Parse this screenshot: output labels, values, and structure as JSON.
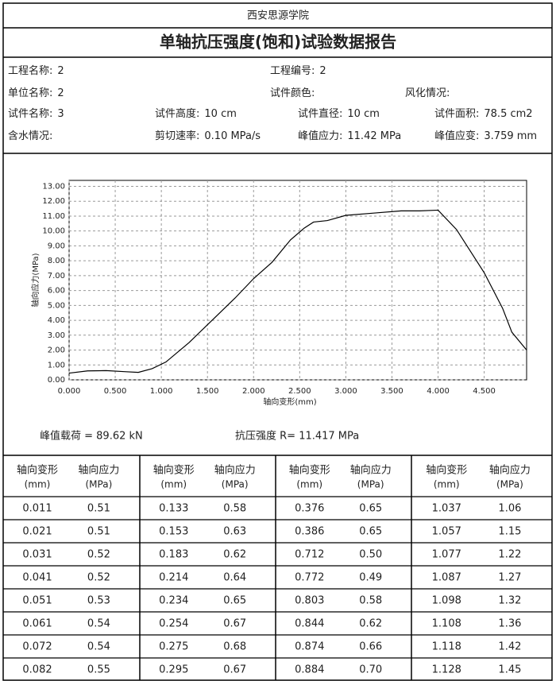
{
  "header": {
    "institution": "西安思源学院",
    "title": "单轴抗压强度(饱和)试验数据报告"
  },
  "info": [
    [
      {
        "label": "工程名称:",
        "value": "2",
        "x": 0
      },
      {
        "label": "工程编号:",
        "value": "2",
        "x": 1
      }
    ],
    [
      {
        "label": "单位名称:",
        "value": "2",
        "x": 0
      },
      {
        "label": "试件颜色:",
        "x": 1
      },
      {
        "label": "风化情况:",
        "x": 2
      }
    ],
    [
      {
        "label": "试件名称:",
        "value": "3"
      },
      {
        "label": "试件高度:",
        "value": "10 cm"
      },
      {
        "label": "试件直径:",
        "value": "10 cm"
      },
      {
        "label": "试件面积:",
        "value": "78.5 cm2"
      }
    ],
    [
      {
        "label": "含水情况:"
      },
      {
        "label": "剪切速率:",
        "value": "0.10 MPa/s"
      },
      {
        "label": "峰值应力:",
        "value": "11.42 MPa"
      },
      {
        "label": "峰值应变:",
        "value": "3.759 mm"
      }
    ]
  ],
  "chart_data": {
    "type": "line",
    "x_label": "轴向变形(mm)",
    "y_label": "轴向应力(MPa)",
    "color": "#000000",
    "grid": true,
    "x": [
      0,
      0.2,
      0.4,
      0.6,
      0.75,
      0.9,
      1.05,
      1.3,
      1.5,
      1.8,
      2.0,
      2.2,
      2.4,
      2.55,
      2.65,
      2.8,
      3.0,
      3.3,
      3.6,
      3.8,
      4.0,
      4.2,
      4.5,
      4.7,
      4.8,
      4.96
    ],
    "values": [
      0.45,
      0.6,
      0.62,
      0.55,
      0.5,
      0.75,
      1.2,
      2.5,
      3.7,
      5.5,
      6.8,
      7.9,
      9.4,
      10.2,
      10.6,
      10.7,
      11.05,
      11.2,
      11.35,
      11.35,
      11.4,
      10.1,
      7.2,
      4.8,
      3.2,
      2.0
    ],
    "xlim": [
      0,
      4.96
    ],
    "ylim": [
      0,
      13.4
    ],
    "xticks": [
      {
        "value": 0,
        "label": "0.000"
      },
      {
        "value": 0.5,
        "label": "0.500"
      },
      {
        "value": 1,
        "label": "1.000"
      },
      {
        "value": 1.5,
        "label": "1.500"
      },
      {
        "value": 2,
        "label": "2.000"
      },
      {
        "value": 2.5,
        "label": "2.500"
      },
      {
        "value": 3,
        "label": "3.000"
      },
      {
        "value": 3.5,
        "label": "3.500"
      },
      {
        "value": 4,
        "label": "4.000"
      },
      {
        "value": 4.5,
        "label": "4.500"
      }
    ],
    "yticks": [
      {
        "value": 0,
        "label": "0.00"
      },
      {
        "value": 1,
        "label": "1.00"
      },
      {
        "value": 2,
        "label": "2.00"
      },
      {
        "value": 3,
        "label": "3.00"
      },
      {
        "value": 4,
        "label": "4.00"
      },
      {
        "value": 5,
        "label": "5.00"
      },
      {
        "value": 6,
        "label": "6.00"
      },
      {
        "value": 7,
        "label": "7.00"
      },
      {
        "value": 8,
        "label": "8.00"
      },
      {
        "value": 9,
        "label": "9.00"
      },
      {
        "value": 10,
        "label": "10.00"
      },
      {
        "value": 11,
        "label": "11.00"
      },
      {
        "value": 12,
        "label": "12.00"
      },
      {
        "value": 13,
        "label": "13.00"
      }
    ]
  },
  "results": [
    "峰值载荷 = 89.62 kN",
    "抗压强度 R= 11.417 MPa"
  ],
  "table": {
    "header": [
      "轴向变形",
      "轴向应力",
      "(mm)",
      "(MPa)"
    ],
    "rows": [
      [
        "0.011",
        "0.51",
        "0.133",
        "0.58",
        "0.376",
        "0.65",
        "1.037",
        "1.06"
      ],
      [
        "0.021",
        "0.51",
        "0.153",
        "0.63",
        "0.386",
        "0.65",
        "1.057",
        "1.15"
      ],
      [
        "0.031",
        "0.52",
        "0.183",
        "0.62",
        "0.712",
        "0.50",
        "1.077",
        "1.22"
      ],
      [
        "0.041",
        "0.52",
        "0.214",
        "0.64",
        "0.772",
        "0.49",
        "1.087",
        "1.27"
      ],
      [
        "0.051",
        "0.53",
        "0.234",
        "0.65",
        "0.803",
        "0.58",
        "1.098",
        "1.32"
      ],
      [
        "0.061",
        "0.54",
        "0.254",
        "0.67",
        "0.844",
        "0.62",
        "1.108",
        "1.36"
      ],
      [
        "0.072",
        "0.54",
        "0.275",
        "0.68",
        "0.874",
        "0.66",
        "1.118",
        "1.42"
      ],
      [
        "0.082",
        "0.55",
        "0.295",
        "0.67",
        "0.884",
        "0.70",
        "1.128",
        "1.45"
      ]
    ]
  }
}
